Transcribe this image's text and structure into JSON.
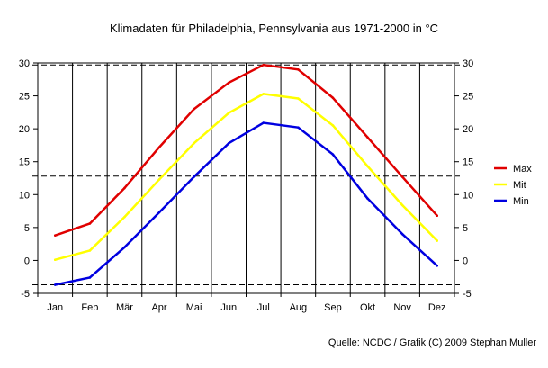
{
  "chart_data": {
    "type": "line",
    "title": "Klimadaten für Philadelphia, Pennsylvania aus 1971-2000 in °C",
    "categories": [
      "Jan",
      "Feb",
      "Mär",
      "Apr",
      "Mai",
      "Jun",
      "Jul",
      "Aug",
      "Sep",
      "Okt",
      "Nov",
      "Dez"
    ],
    "yticks": [
      30,
      25,
      20,
      15,
      10,
      5,
      0,
      -5
    ],
    "ylim": [
      -5,
      30
    ],
    "grid": "vertical lines per month; dashed horizontal reference lines",
    "reference_lines": [
      29.7,
      12.8,
      -3.7
    ],
    "legend_position": "right",
    "series": [
      {
        "name": "Max",
        "color": "#e00000",
        "values": [
          3.8,
          5.6,
          11.0,
          17.2,
          23.0,
          27.0,
          29.7,
          29.0,
          24.7,
          18.7,
          12.7,
          6.8
        ]
      },
      {
        "name": "Mit",
        "color": "#ffff00",
        "values": [
          0.1,
          1.5,
          6.6,
          12.3,
          17.8,
          22.4,
          25.3,
          24.6,
          20.5,
          14.3,
          8.4,
          3.0
        ]
      },
      {
        "name": "Min",
        "color": "#0000e0",
        "values": [
          -3.7,
          -2.6,
          2.0,
          7.3,
          12.7,
          17.8,
          20.9,
          20.2,
          16.1,
          9.4,
          4.0,
          -0.8
        ]
      }
    ]
  },
  "source": "Quelle: NCDC / Grafik (C) 2009 Stephan Muller"
}
